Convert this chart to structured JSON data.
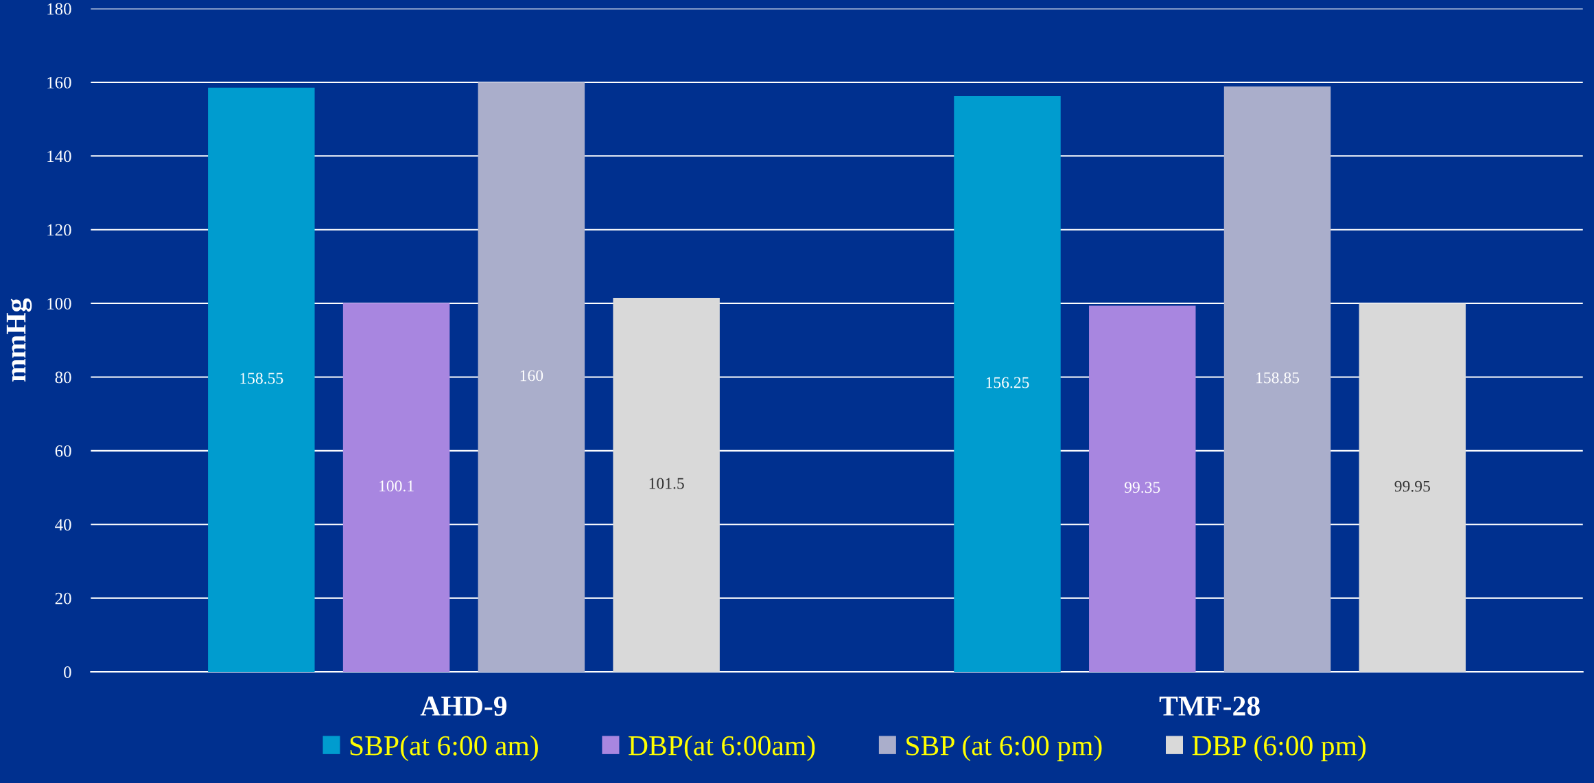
{
  "chart_data": {
    "type": "bar",
    "ylabel": "mmHg",
    "categories": [
      "AHD-9",
      "TMF-28"
    ],
    "series": [
      {
        "name": "SBP(at 6:00 am)",
        "color": "#009ccf",
        "values": [
          158.55,
          156.25
        ]
      },
      {
        "name": "DBP(at 6:00am)",
        "color": "#a886e0",
        "values": [
          100.1,
          99.35
        ]
      },
      {
        "name": "SBP (at 6:00 pm)",
        "color": "#aaaecb",
        "values": [
          160,
          158.85
        ]
      },
      {
        "name": "DBP (6:00 pm)",
        "color": "#d9d9d9",
        "values": [
          101.5,
          99.95
        ]
      }
    ],
    "ylim": [
      0,
      180
    ],
    "yticks": [
      0,
      20,
      40,
      60,
      80,
      100,
      120,
      140,
      160,
      180
    ],
    "grid": "y",
    "legend": "bottom",
    "data_labels": true
  }
}
